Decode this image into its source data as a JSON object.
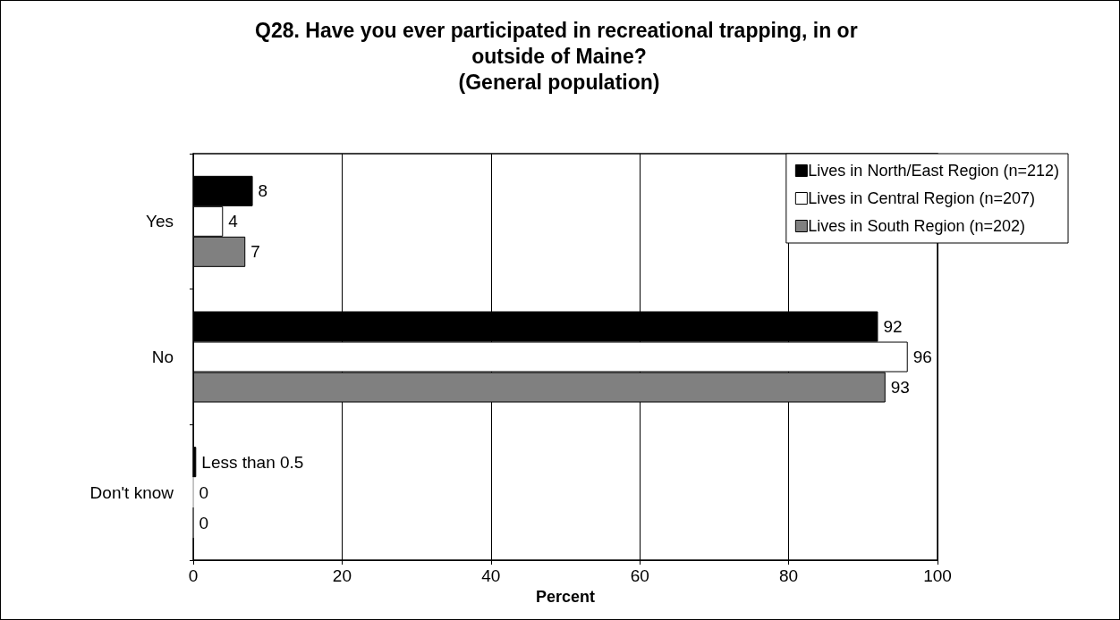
{
  "chart_data": {
    "type": "bar",
    "orientation": "horizontal",
    "title": "Q28. Have you ever participated in recreational trapping, in or outside of Maine?\n(General population)",
    "xlabel": "Percent",
    "categories": [
      "Yes",
      "No",
      "Don't know"
    ],
    "series": [
      {
        "name": "Lives in North/East Region (n=212)",
        "color": "#000000",
        "values": [
          8,
          92,
          0.4
        ],
        "value_labels": [
          "8",
          "92",
          "Less than 0.5"
        ]
      },
      {
        "name": "Lives in Central Region (n=207)",
        "color": "#ffffff",
        "values": [
          4,
          96,
          0
        ],
        "value_labels": [
          "4",
          "96",
          "0"
        ]
      },
      {
        "name": "Lives in South Region (n=202)",
        "color": "#808080",
        "values": [
          7,
          93,
          0
        ],
        "value_labels": [
          "7",
          "93",
          "0"
        ]
      }
    ],
    "xlim": [
      0,
      100
    ],
    "xticks": [
      0,
      20,
      40,
      60,
      80,
      100
    ],
    "grid": "x",
    "legend": "top right"
  }
}
